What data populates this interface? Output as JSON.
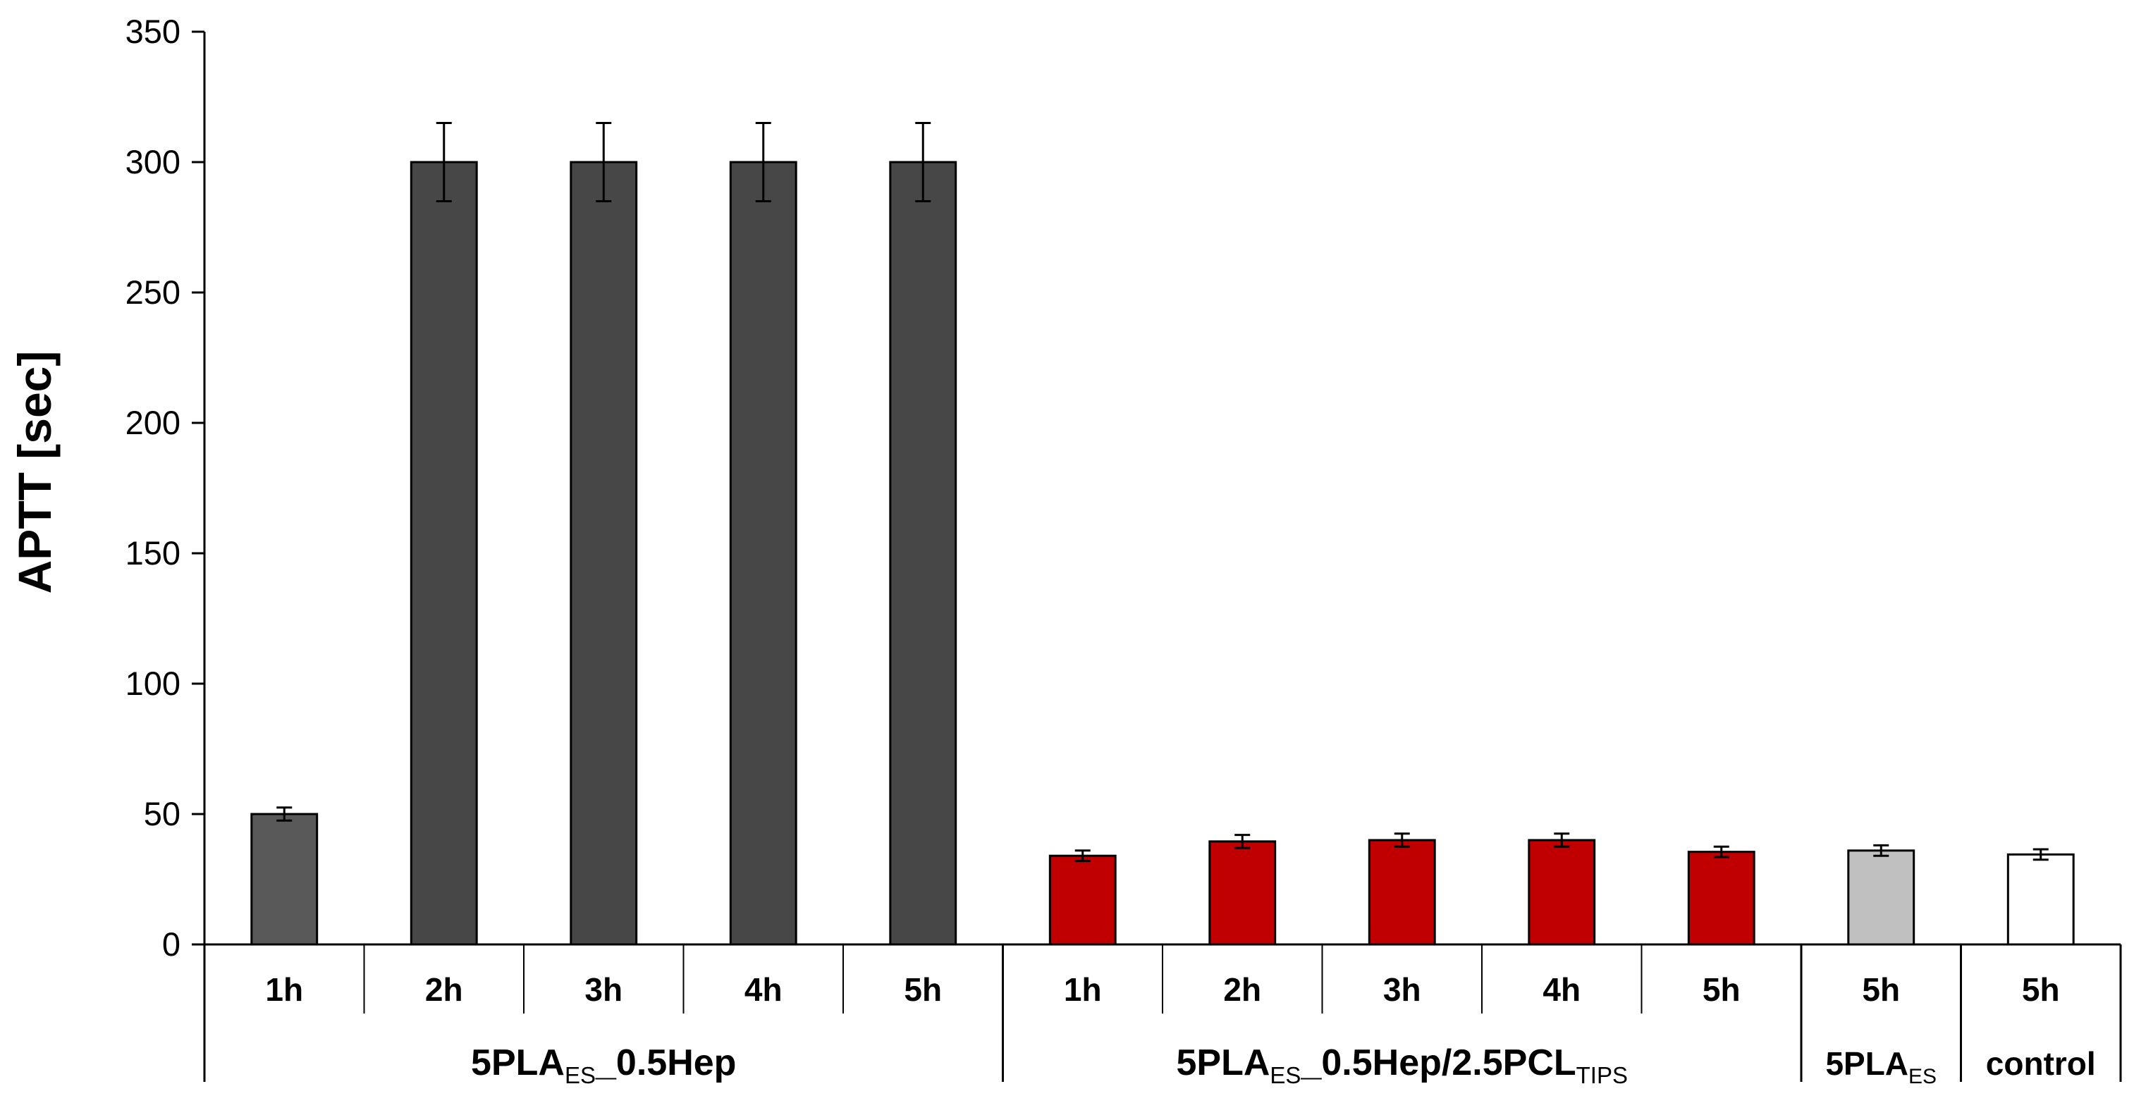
{
  "chart_data": {
    "type": "bar",
    "title": "",
    "ylabel": "APTT [sec]",
    "ylim": [
      0,
      350
    ],
    "yticks": [
      "0",
      "50",
      "100",
      "150",
      "200",
      "250",
      "300",
      "350"
    ],
    "grid": false,
    "categories": [
      "1h",
      "2h",
      "3h",
      "4h",
      "5h",
      "1h",
      "2h",
      "3h",
      "4h",
      "5h",
      "5h",
      "5h"
    ],
    "values": [
      50,
      300,
      300,
      300,
      300,
      34,
      39.5,
      40,
      40,
      35.5,
      36,
      34.5
    ],
    "errors": [
      2.5,
      15,
      15,
      15,
      15,
      2,
      2.5,
      2.5,
      2.5,
      2,
      2,
      2
    ],
    "bar_colors": [
      "#595959",
      "#474747",
      "#474747",
      "#474747",
      "#474747",
      "#c00000",
      "#c00000",
      "#c00000",
      "#c00000",
      "#c00000",
      "#c0c0c0",
      "#ffffff"
    ],
    "groups": [
      {
        "label_main": "5PLA",
        "label_sub": "ES",
        "label_rest": "_0.5Hep",
        "label_sub2": "",
        "span": 5
      },
      {
        "label_main": "5PLA",
        "label_sub": "ES",
        "label_rest": "_0.5Hep/2.5PCL",
        "label_sub2": "TIPS",
        "span": 5
      },
      {
        "label_main": "5PLA",
        "label_sub": "ES",
        "label_rest": "",
        "label_sub2": "",
        "span": 1
      },
      {
        "label_main": "control",
        "label_sub": "",
        "label_rest": "",
        "label_sub2": "",
        "span": 1
      }
    ]
  }
}
